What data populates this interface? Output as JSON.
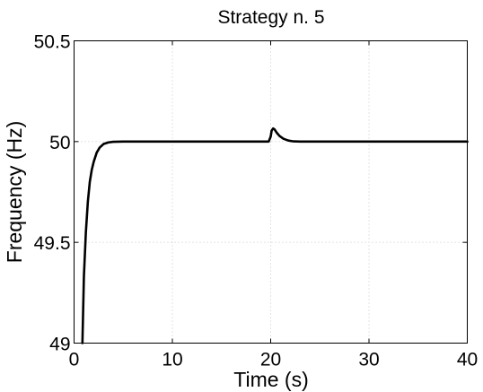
{
  "chart_data": {
    "type": "line",
    "title": "Strategy n. 5",
    "xlabel": "Time (s)",
    "ylabel": "Frequency (Hz)",
    "xlim": [
      0,
      40
    ],
    "ylim": [
      49,
      50.5
    ],
    "grid": true,
    "x_ticks": [
      0,
      10,
      20,
      30,
      40
    ],
    "y_ticks": [
      49,
      49.5,
      50,
      50.5
    ],
    "x_tick_labels": [
      "0",
      "10",
      "20",
      "30",
      "40"
    ],
    "y_tick_labels": [
      "49",
      "49.5",
      "50",
      "50.5"
    ],
    "series": [
      {
        "x": [
          0.85,
          1.0,
          1.2,
          1.4,
          1.6,
          1.8,
          2.0,
          2.3,
          2.6,
          3.0,
          3.5,
          4.0,
          5.0,
          6.0,
          8.0,
          10.0,
          15.0,
          19.8,
          20.0,
          20.1,
          20.25,
          20.4,
          20.6,
          20.9,
          21.3,
          21.8,
          22.3,
          23.0,
          25.0,
          30.0,
          35.0,
          40.0
        ],
        "y": [
          49.0,
          49.33,
          49.55,
          49.7,
          49.8,
          49.86,
          49.9,
          49.945,
          49.97,
          49.988,
          49.996,
          49.999,
          50.0,
          50.0,
          50.0,
          50.0,
          50.0,
          50.0,
          50.025,
          50.055,
          50.065,
          50.06,
          50.045,
          50.028,
          50.014,
          50.005,
          50.001,
          50.0,
          50.0,
          50.0,
          50.0,
          50.0
        ]
      }
    ]
  }
}
